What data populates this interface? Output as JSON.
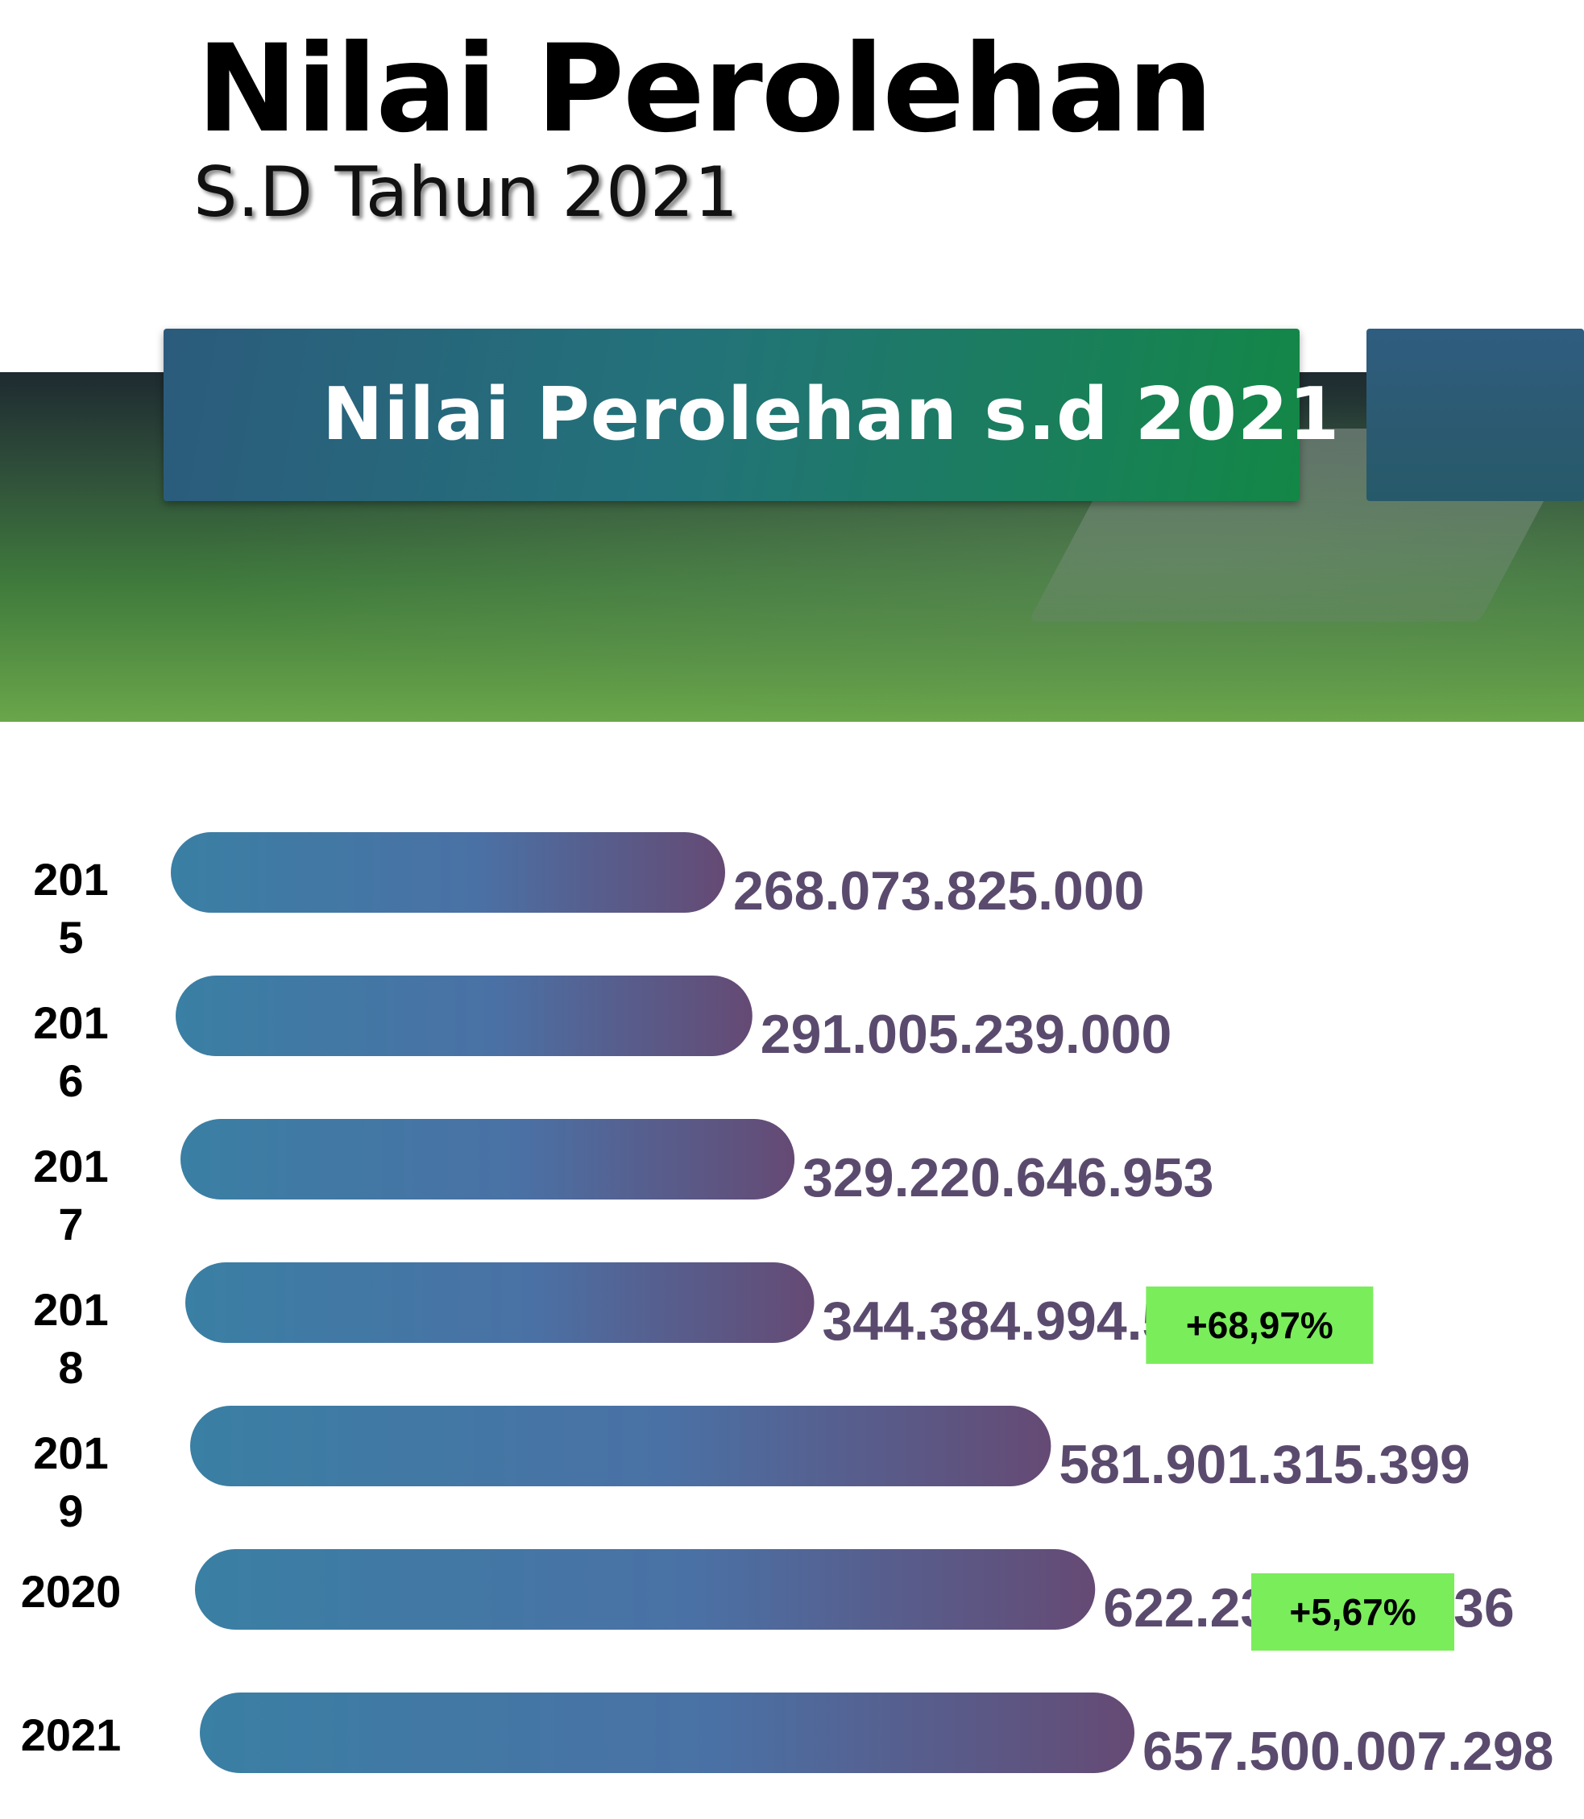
{
  "header": {
    "title": "Nilai Perolehan",
    "subtitle": "S.D Tahun 2021"
  },
  "banner": {
    "label": "Nilai Perolehan s.d 2021"
  },
  "colors": {
    "bar_start": "#3a7fa4",
    "bar_mid": "#4a71a5",
    "bar_end": "#654a74",
    "value_text": "#5a4b6e",
    "growth_badge": "#7aed5b"
  },
  "chart_data": {
    "type": "bar",
    "orientation": "horizontal",
    "categories": [
      "2015",
      "2016",
      "2017",
      "2018",
      "2019",
      "2020",
      "2021"
    ],
    "category_display": [
      [
        "201",
        "5"
      ],
      [
        "201",
        "6"
      ],
      [
        "201",
        "7"
      ],
      [
        "201",
        "8"
      ],
      [
        "201",
        "9"
      ],
      [
        "2020"
      ],
      [
        "2021"
      ]
    ],
    "values": [
      268073825000,
      291005239000,
      329220646953,
      344384994592,
      581901315399,
      622237426936,
      657500007298
    ],
    "value_labels": [
      "268.073.825.000",
      "291.005.239.000",
      "329.220.646.953",
      "344.384.994.592",
      "581.901.315.399",
      "622.237.426.936",
      "657.500.007.298"
    ],
    "growth_annotations": [
      {
        "category": "2019",
        "text": "+68,97%"
      },
      {
        "category": "2021",
        "text": "+5,67%"
      }
    ],
    "grid": false,
    "legend": "none"
  }
}
